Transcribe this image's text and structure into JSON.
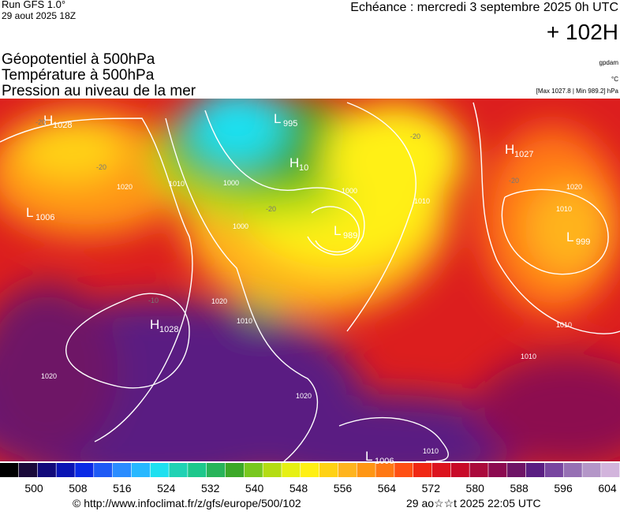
{
  "header": {
    "run": "Run GFS 1.0°",
    "run_date": "29 aout 2025 18Z",
    "valid": "Echéance : mercredi 3 septembre 2025 0h UTC",
    "lead": "+ 102H",
    "fields": [
      "Géopotentiel à 500hPa",
      "Température à 500hPa",
      "Pression au niveau de la mer"
    ],
    "units": [
      "gpdam",
      "°C",
      "[Max 1027.8 | Min 989.2] hPa"
    ]
  },
  "centers": [
    {
      "kind": "H",
      "value": "1028"
    },
    {
      "kind": "L",
      "value": "1006"
    },
    {
      "kind": "H",
      "value": "1028"
    },
    {
      "kind": "L",
      "value": "995"
    },
    {
      "kind": "H",
      "value": "10"
    },
    {
      "kind": "L",
      "value": "989"
    },
    {
      "kind": "H",
      "value": "1027"
    },
    {
      "kind": "L",
      "value": "999"
    },
    {
      "kind": "L",
      "value": "1006"
    }
  ],
  "isobar_labels": [
    "1020",
    "1010",
    "1000",
    "1000",
    "1000",
    "1020",
    "1010",
    "1010",
    "1020",
    "1010",
    "1010",
    "1010",
    "1020",
    "1020",
    "1010"
  ],
  "temperature_labels": [
    "-20",
    "-20",
    "-20",
    "-20",
    "-20",
    "-10"
  ],
  "colorbar": {
    "ticks": [
      500,
      508,
      516,
      524,
      532,
      540,
      548,
      556,
      564,
      572,
      580,
      588,
      596,
      604
    ],
    "colors": [
      "#000000",
      "#1a0a3a",
      "#120a7a",
      "#0a14b4",
      "#0a2ae6",
      "#1e5af5",
      "#2a8cff",
      "#28b8ff",
      "#1ee0f0",
      "#20d2b4",
      "#1ec88c",
      "#28b45a",
      "#3ca828",
      "#78c81e",
      "#b4dc14",
      "#e6f014",
      "#fff014",
      "#ffd214",
      "#ffb41e",
      "#ff9614",
      "#ff7814",
      "#ff5014",
      "#f02814",
      "#dc141e",
      "#c80a28",
      "#aa0a3c",
      "#8c0a50",
      "#6e1466",
      "#5a1e82",
      "#7846a0",
      "#9670b4",
      "#b496c8",
      "#d2b4dc"
    ]
  },
  "footer": {
    "url": "© http://www.infoclimat.fr/z/gfs/europe/500/102",
    "generated": "29 ao☆☆t 2025 22:05 UTC"
  }
}
